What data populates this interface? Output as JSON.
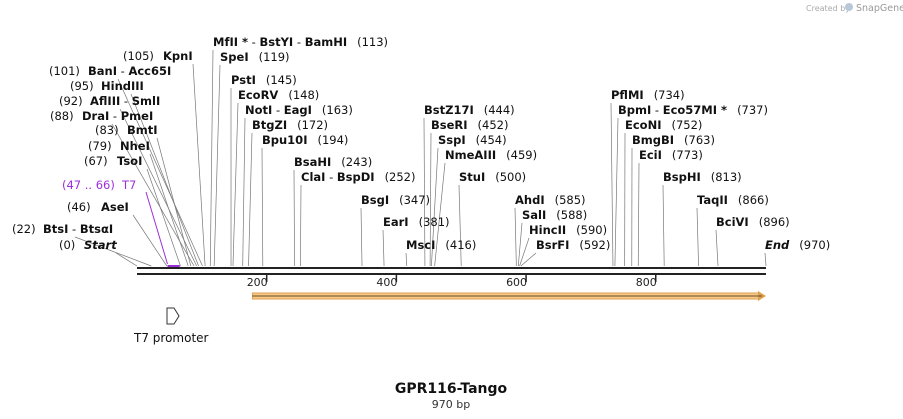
{
  "credit": {
    "prefix": "Created by",
    "brand": "SnapGene"
  },
  "sequence": {
    "name": "GPR116-Tango",
    "length_label": "970 bp",
    "length": 970
  },
  "axis_ticks": [
    200,
    400,
    600,
    800
  ],
  "colors": {
    "feature": "#9b30d9",
    "orf_fill": "#f5c98a",
    "orf_stroke": "#e0a050",
    "line": "#222222"
  },
  "sites": [
    {
      "parts": [
        {
          "t": "Start",
          "cls": "name",
          "it": true
        }
      ],
      "pre": "(0)",
      "pos": 0
    },
    {
      "parts": [
        {
          "t": "BtsI",
          "cls": "name"
        },
        {
          "t": " - ",
          "cls": "pos"
        },
        {
          "t": "BtsαI",
          "cls": "name"
        }
      ],
      "pre": "(22)",
      "pos": 22
    },
    {
      "parts": [
        {
          "t": "AseI",
          "cls": "name"
        }
      ],
      "pre": "(46)",
      "pos": 46
    },
    {
      "parts": [
        {
          "t": "TsoI",
          "cls": "name"
        }
      ],
      "pre": "(67)",
      "pos": 67
    },
    {
      "parts": [
        {
          "t": "NheI",
          "cls": "name"
        }
      ],
      "pre": "(79)",
      "pos": 79
    },
    {
      "parts": [
        {
          "t": "BmtI",
          "cls": "name"
        }
      ],
      "pre": "(83)",
      "pos": 83
    },
    {
      "parts": [
        {
          "t": "DraI",
          "cls": "name"
        },
        {
          "t": " - ",
          "cls": "pos"
        },
        {
          "t": "PmeI",
          "cls": "name"
        }
      ],
      "pre": "(88)",
      "pos": 88
    },
    {
      "parts": [
        {
          "t": "AflIII",
          "cls": "name"
        },
        {
          "t": " - ",
          "cls": "pos"
        },
        {
          "t": "SmlI",
          "cls": "name"
        }
      ],
      "pre": "(92)",
      "pos": 92
    },
    {
      "parts": [
        {
          "t": "HindIII",
          "cls": "name"
        }
      ],
      "pre": "(95)",
      "pos": 95
    },
    {
      "parts": [
        {
          "t": "BanI",
          "cls": "name"
        },
        {
          "t": " - ",
          "cls": "pos"
        },
        {
          "t": "Acc65I",
          "cls": "name"
        }
      ],
      "pre": "(101)",
      "pos": 101
    },
    {
      "parts": [
        {
          "t": "KpnI",
          "cls": "name"
        }
      ],
      "pre": "(105)",
      "pos": 105
    },
    {
      "parts": [
        {
          "t": "MfII *",
          "cls": "name"
        },
        {
          "t": " - ",
          "cls": "pos"
        },
        {
          "t": "BstYI",
          "cls": "name"
        },
        {
          "t": " - ",
          "cls": "pos"
        },
        {
          "t": "BamHI",
          "cls": "name"
        }
      ],
      "post": "(113)",
      "pos": 113
    },
    {
      "parts": [
        {
          "t": "SpeI",
          "cls": "name"
        }
      ],
      "post": "(119)",
      "pos": 119
    },
    {
      "parts": [
        {
          "t": "PstI",
          "cls": "name"
        }
      ],
      "post": "(145)",
      "pos": 145
    },
    {
      "parts": [
        {
          "t": "EcoRV",
          "cls": "name"
        }
      ],
      "post": "(148)",
      "pos": 148
    },
    {
      "parts": [
        {
          "t": "NotI",
          "cls": "name"
        },
        {
          "t": " - ",
          "cls": "pos"
        },
        {
          "t": "EagI",
          "cls": "name"
        }
      ],
      "post": "(163)",
      "pos": 163
    },
    {
      "parts": [
        {
          "t": "BtgZI",
          "cls": "name"
        }
      ],
      "post": "(172)",
      "pos": 172
    },
    {
      "parts": [
        {
          "t": "Bpu10I",
          "cls": "name"
        }
      ],
      "post": "(194)",
      "pos": 194
    },
    {
      "parts": [
        {
          "t": "BsaHI",
          "cls": "name"
        }
      ],
      "post": "(243)",
      "pos": 243
    },
    {
      "parts": [
        {
          "t": "ClaI",
          "cls": "name"
        },
        {
          "t": " - ",
          "cls": "pos"
        },
        {
          "t": "BspDI",
          "cls": "name"
        }
      ],
      "post": "(252)",
      "pos": 252
    },
    {
      "parts": [
        {
          "t": "BsgI",
          "cls": "name"
        }
      ],
      "post": "(347)",
      "pos": 347
    },
    {
      "parts": [
        {
          "t": "EarI",
          "cls": "name"
        }
      ],
      "post": "(381)",
      "pos": 381
    },
    {
      "parts": [
        {
          "t": "MscI",
          "cls": "name"
        }
      ],
      "post": "(416)",
      "pos": 416
    },
    {
      "parts": [
        {
          "t": "BstZ17I",
          "cls": "name"
        }
      ],
      "post": "(444)",
      "pos": 444
    },
    {
      "parts": [
        {
          "t": "BseRI",
          "cls": "name"
        }
      ],
      "post": "(452)",
      "pos": 452
    },
    {
      "parts": [
        {
          "t": "SspI",
          "cls": "name"
        }
      ],
      "post": "(454)",
      "pos": 454
    },
    {
      "parts": [
        {
          "t": "NmeAIII",
          "cls": "name"
        }
      ],
      "post": "(459)",
      "pos": 459
    },
    {
      "parts": [
        {
          "t": "StuI",
          "cls": "name"
        }
      ],
      "post": "(500)",
      "pos": 500
    },
    {
      "parts": [
        {
          "t": "AhdI",
          "cls": "name"
        }
      ],
      "post": "(585)",
      "pos": 585
    },
    {
      "parts": [
        {
          "t": "SalI",
          "cls": "name"
        }
      ],
      "post": "(588)",
      "pos": 588
    },
    {
      "parts": [
        {
          "t": "HincII",
          "cls": "name"
        }
      ],
      "post": "(590)",
      "pos": 590
    },
    {
      "parts": [
        {
          "t": "BsrFI",
          "cls": "name"
        }
      ],
      "post": "(592)",
      "pos": 592
    },
    {
      "parts": [
        {
          "t": "PflMI",
          "cls": "name"
        }
      ],
      "post": "(734)",
      "pos": 734
    },
    {
      "parts": [
        {
          "t": "BpmI",
          "cls": "name"
        },
        {
          "t": " - ",
          "cls": "pos"
        },
        {
          "t": "Eco57MI *",
          "cls": "name"
        }
      ],
      "post": "(737)",
      "pos": 737
    },
    {
      "parts": [
        {
          "t": "EcoNI",
          "cls": "name"
        }
      ],
      "post": "(752)",
      "pos": 752
    },
    {
      "parts": [
        {
          "t": "BmgBI",
          "cls": "name"
        }
      ],
      "post": "(763)",
      "pos": 763
    },
    {
      "parts": [
        {
          "t": "EciI",
          "cls": "name"
        }
      ],
      "post": "(773)",
      "pos": 773
    },
    {
      "parts": [
        {
          "t": "BspHI",
          "cls": "name"
        }
      ],
      "post": "(813)",
      "pos": 813
    },
    {
      "parts": [
        {
          "t": "TaqII",
          "cls": "name"
        }
      ],
      "post": "(866)",
      "pos": 866
    },
    {
      "parts": [
        {
          "t": "BciVI",
          "cls": "name"
        }
      ],
      "post": "(896)",
      "pos": 896
    },
    {
      "parts": [
        {
          "t": "End",
          "cls": "name",
          "it": true
        }
      ],
      "post": "(970)",
      "pos": 970
    }
  ],
  "feature_label": {
    "range": "(47 .. 66)",
    "name": "T7",
    "start": 47,
    "end": 66
  },
  "promoter": {
    "label": "T7 promoter"
  },
  "orf": {
    "start": 178,
    "end": 970
  }
}
